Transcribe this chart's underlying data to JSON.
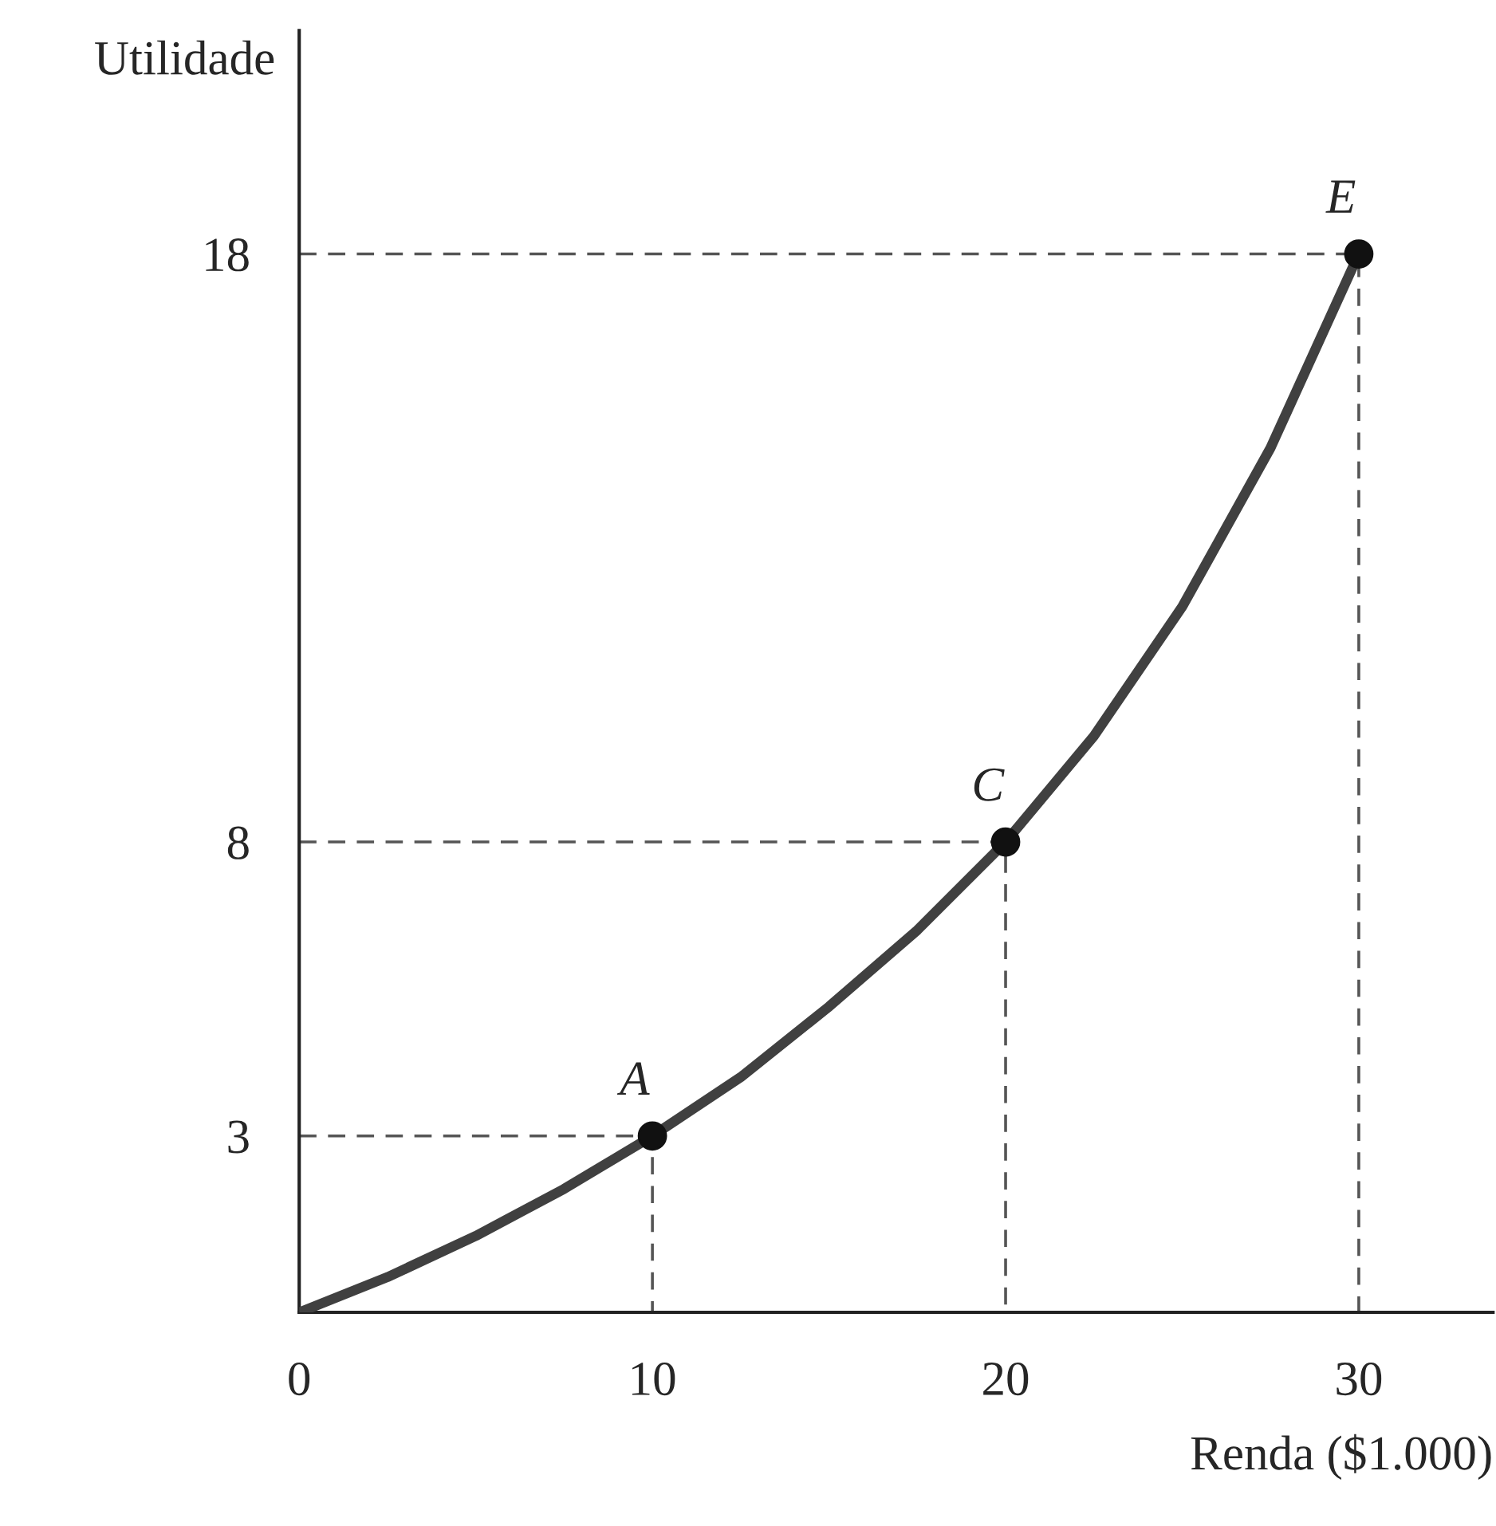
{
  "chart_data": {
    "type": "line",
    "xlabel": "Renda ($1.000)",
    "ylabel": "Utilidade",
    "xlim": [
      0,
      33.8
    ],
    "ylim": [
      0,
      21.8
    ],
    "xticks": [
      0,
      10,
      20,
      30
    ],
    "yticks": [
      3,
      8,
      18
    ],
    "grid": false,
    "legend": false,
    "series": [
      {
        "color": "#404040",
        "line_style": "solid",
        "marker": "none",
        "x": [
          0,
          2.5,
          5,
          7.5,
          10,
          12.5,
          15,
          17.5,
          20,
          22.5,
          25,
          27.5,
          30
        ],
        "values": [
          0,
          0.6,
          1.3,
          2.1,
          3,
          4,
          5.2,
          6.5,
          8,
          9.8,
          12,
          14.7,
          18
        ]
      },
      {
        "type": "scatter",
        "color": "#111111",
        "marker": "circle",
        "x": [
          10,
          20,
          30
        ],
        "values": [
          3,
          8,
          18
        ]
      },
      {
        "color": "#555555",
        "line_style": "dashed",
        "marker": "none",
        "x": [
          0,
          10,
          10
        ],
        "values": [
          3,
          3,
          0
        ]
      },
      {
        "color": "#555555",
        "line_style": "dashed",
        "marker": "none",
        "x": [
          0,
          20,
          20
        ],
        "values": [
          8,
          8,
          0
        ]
      },
      {
        "color": "#555555",
        "line_style": "dashed",
        "marker": "none",
        "x": [
          0,
          30,
          30
        ],
        "values": [
          18,
          18,
          0
        ]
      }
    ],
    "annotations": [
      {
        "text": "A",
        "x": 10,
        "y": 3
      },
      {
        "text": "C",
        "x": 20,
        "y": 8
      },
      {
        "text": "E",
        "x": 30,
        "y": 18
      }
    ]
  }
}
